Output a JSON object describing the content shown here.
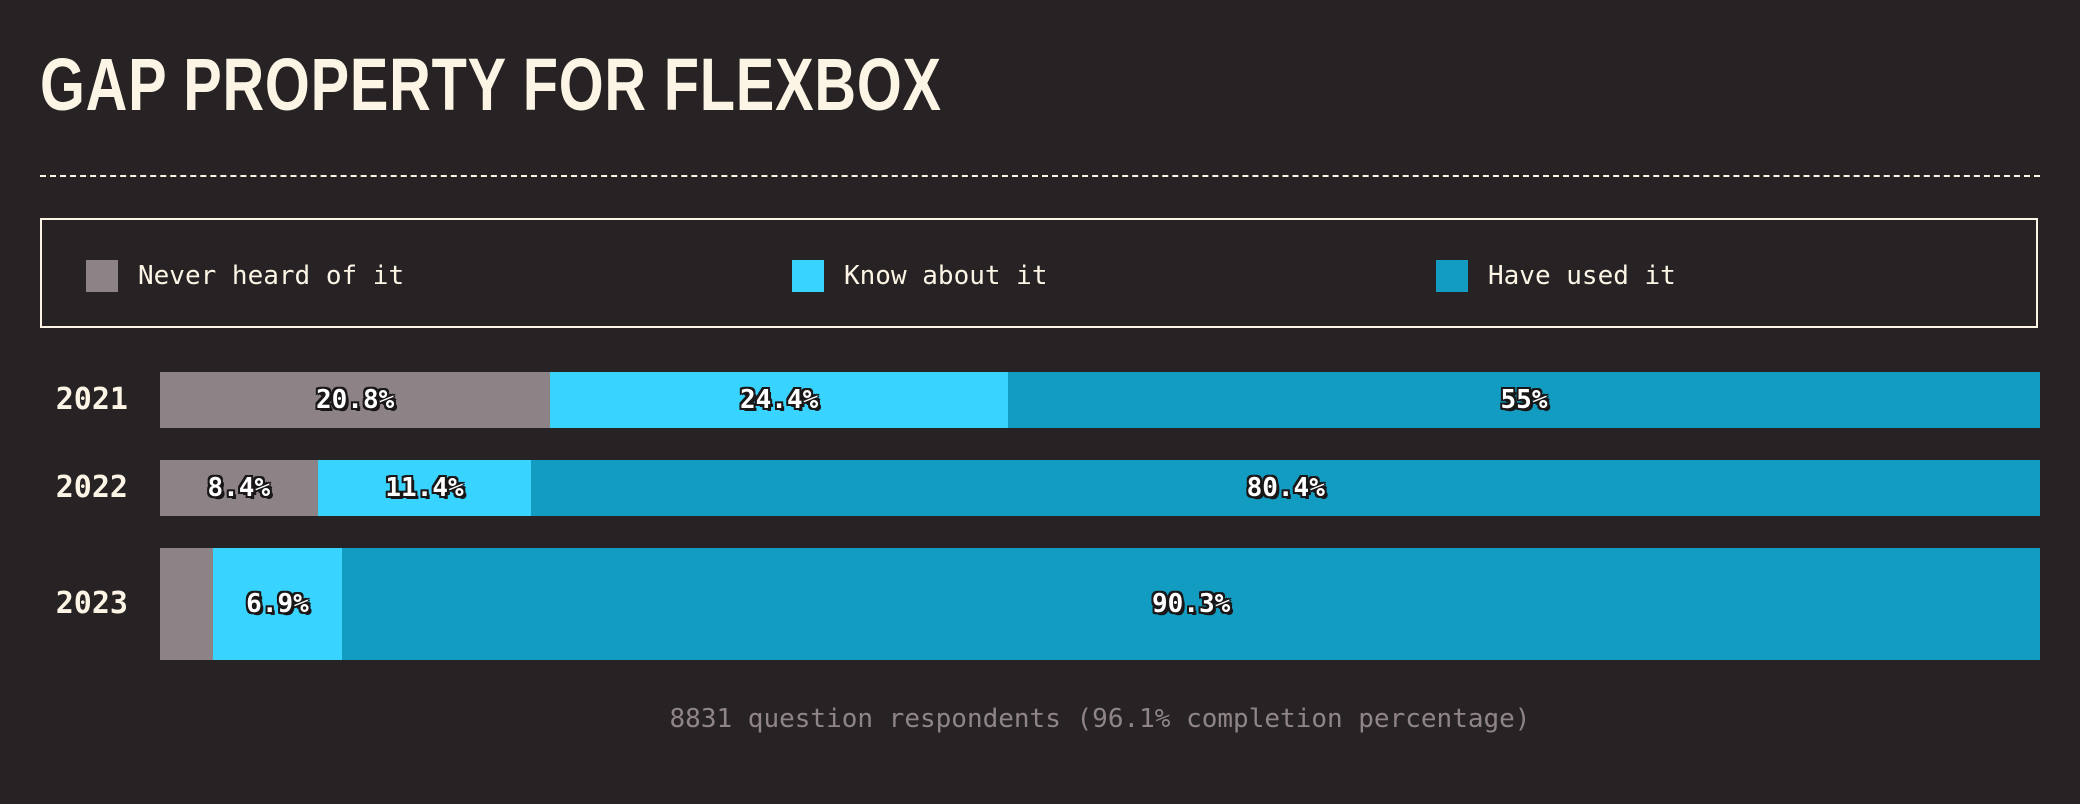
{
  "title": "GAP PROPERTY FOR FLEXBOX",
  "colors": {
    "background": "#272324",
    "text": "#fcf5e6",
    "never_heard": "#8d8386",
    "know_about": "#38d4ff",
    "have_used": "#139cc2"
  },
  "footnote": "8831 question respondents (96.1% completion percentage)",
  "chart_data": {
    "type": "bar",
    "orientation": "horizontal",
    "stacked": true,
    "normalized_to_percent": true,
    "legend_placement": "top",
    "grid": false,
    "categories": [
      "2021",
      "2022",
      "2023"
    ],
    "series": [
      {
        "name": "Never heard of it",
        "color": "#8d8386",
        "values": [
          20.8,
          8.4,
          2.8
        ],
        "labels": [
          "20.8%",
          "8.4%",
          ""
        ]
      },
      {
        "name": "Know about it",
        "color": "#38d4ff",
        "values": [
          24.4,
          11.4,
          6.9
        ],
        "labels": [
          "24.4%",
          "11.4%",
          "6.9%"
        ]
      },
      {
        "name": "Have used it",
        "color": "#139cc2",
        "values": [
          55,
          80.4,
          90.3
        ],
        "labels": [
          "55%",
          "80.4%",
          "90.3%"
        ]
      }
    ],
    "xlim": [
      0,
      100
    ]
  }
}
